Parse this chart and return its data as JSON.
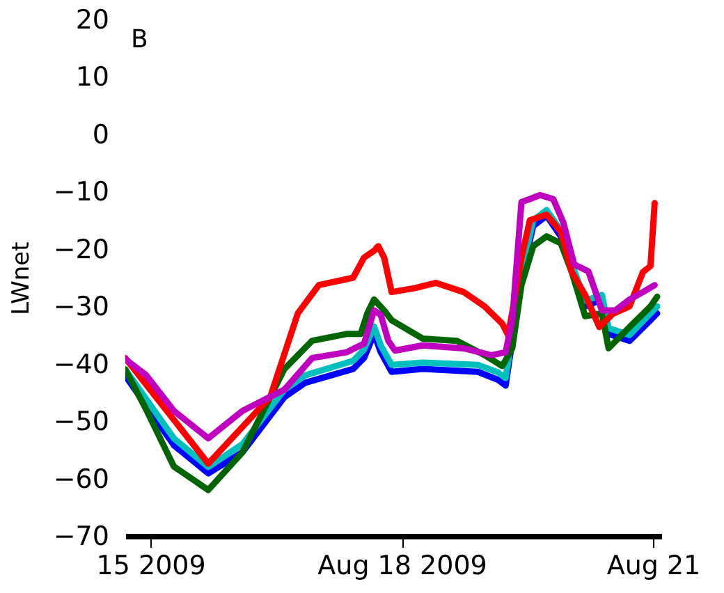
{
  "chart_data": {
    "type": "line",
    "ylabel": "LWnet",
    "annotations": [
      "B"
    ],
    "xlim": [
      "2009-08-14T16:48",
      "2009-08-21T02:24"
    ],
    "xticks": [
      {
        "value": "2009-08-15",
        "label": "15 2009"
      },
      {
        "value": "2009-08-18",
        "label": "Aug 18 2009"
      },
      {
        "value": "2009-08-21",
        "label": "Aug 21"
      }
    ],
    "ylim": [
      -70,
      20
    ],
    "yticks": [
      -70,
      -60,
      -50,
      -40,
      -30,
      -20,
      -10,
      0,
      10,
      20
    ],
    "grid": false,
    "legend": false,
    "marker": "none",
    "line_style": "solid",
    "series": [
      {
        "color": "#0000ff",
        "x": [
          "2009-08-14T16:48",
          "2009-08-15T06:43",
          "2009-08-15T16:34",
          "2009-08-16T02:24",
          "2009-08-16T14:24",
          "2009-08-16T20:24",
          "2009-08-17T10:05",
          "2009-08-17T13:12",
          "2009-08-17T16:05",
          "2009-08-17T18:00",
          "2009-08-17T21:07",
          "2009-08-18T06:00",
          "2009-08-18T21:50",
          "2009-08-19T03:36",
          "2009-08-19T05:46",
          "2009-08-19T07:41",
          "2009-08-19T10:19",
          "2009-08-19T13:41",
          "2009-08-19T17:31",
          "2009-08-19T21:36",
          "2009-08-20T00:43",
          "2009-08-20T04:34",
          "2009-08-20T09:22",
          "2009-08-20T11:17",
          "2009-08-20T17:17",
          "2009-08-20T23:17",
          "2009-08-21T01:12"
        ],
        "values": [
          -42.1,
          -54.2,
          -59.1,
          -55.4,
          -45.8,
          -43.3,
          -40.9,
          -39,
          -34.8,
          -38,
          -41.4,
          -40.9,
          -41.4,
          -42.8,
          -43.8,
          -36,
          -25,
          -16,
          -14.2,
          -17.8,
          -23.5,
          -30,
          -28.8,
          -34.8,
          -36,
          -32.4,
          -31.2
        ]
      },
      {
        "color": "#00bfbf",
        "x": [
          "2009-08-14T16:48",
          "2009-08-15T06:43",
          "2009-08-15T16:34",
          "2009-08-16T02:24",
          "2009-08-16T14:24",
          "2009-08-16T20:24",
          "2009-08-17T10:05",
          "2009-08-17T13:12",
          "2009-08-17T16:05",
          "2009-08-17T18:00",
          "2009-08-17T21:07",
          "2009-08-18T06:00",
          "2009-08-18T21:50",
          "2009-08-19T03:36",
          "2009-08-19T05:46",
          "2009-08-19T07:41",
          "2009-08-19T10:19",
          "2009-08-19T13:41",
          "2009-08-19T17:31",
          "2009-08-19T21:36",
          "2009-08-20T00:43",
          "2009-08-20T04:34",
          "2009-08-20T09:22",
          "2009-08-20T11:17",
          "2009-08-20T17:17",
          "2009-08-20T23:17",
          "2009-08-21T01:12"
        ],
        "values": [
          -41,
          -53,
          -58,
          -54,
          -44.5,
          -42,
          -39.5,
          -37.5,
          -33.5,
          -36.8,
          -40.2,
          -39.8,
          -40.2,
          -41.5,
          -42.5,
          -35,
          -24,
          -15,
          -13.2,
          -16.8,
          -22.5,
          -29,
          -28,
          -33.8,
          -35,
          -31.2,
          -30
        ]
      },
      {
        "color": "#006400",
        "x": [
          "2009-08-14T16:48",
          "2009-08-14T22:48",
          "2009-08-15T06:43",
          "2009-08-15T16:34",
          "2009-08-16T02:24",
          "2009-08-16T14:24",
          "2009-08-16T22:19",
          "2009-08-17T08:10",
          "2009-08-17T12:14",
          "2009-08-17T14:10",
          "2009-08-17T16:05",
          "2009-08-17T18:58",
          "2009-08-17T21:07",
          "2009-08-18T06:00",
          "2009-08-18T15:50",
          "2009-08-18T23:46",
          "2009-08-19T04:48",
          "2009-08-19T07:41",
          "2009-08-19T10:19",
          "2009-08-19T13:41",
          "2009-08-19T17:31",
          "2009-08-19T21:36",
          "2009-08-20T00:43",
          "2009-08-20T04:34",
          "2009-08-20T09:22",
          "2009-08-20T11:17",
          "2009-08-20T17:17",
          "2009-08-20T23:17",
          "2009-08-21T01:12"
        ],
        "values": [
          -41,
          -48,
          -57.9,
          -62,
          -55.4,
          -40.9,
          -36,
          -34.8,
          -34.8,
          -31.2,
          -28.8,
          -30.7,
          -32.4,
          -35.6,
          -36,
          -38.5,
          -40.4,
          -37.3,
          -26.3,
          -19.5,
          -17.8,
          -19,
          -24,
          -31.7,
          -31.2,
          -37.3,
          -33.6,
          -30,
          -28.3
        ]
      },
      {
        "color": "#ff0000",
        "x": [
          "2009-08-14T16:48",
          "2009-08-15T16:34",
          "2009-08-16T10:19",
          "2009-08-16T18:14",
          "2009-08-17T00:14",
          "2009-08-17T10:05",
          "2009-08-17T13:12",
          "2009-08-17T16:05",
          "2009-08-17T17:17",
          "2009-08-17T18:58",
          "2009-08-17T21:07",
          "2009-08-18T03:50",
          "2009-08-18T09:50",
          "2009-08-18T17:46",
          "2009-08-18T23:46",
          "2009-08-19T04:48",
          "2009-08-19T06:29",
          "2009-08-19T07:41",
          "2009-08-19T10:19",
          "2009-08-19T12:43",
          "2009-08-19T17:31",
          "2009-08-19T21:36",
          "2009-08-20T00:43",
          "2009-08-20T04:34",
          "2009-08-20T08:38",
          "2009-08-20T12:29",
          "2009-08-20T17:17",
          "2009-08-20T21:07",
          "2009-08-20T23:17",
          "2009-08-21T00:29"
        ],
        "values": [
          -39,
          -57.4,
          -45.8,
          -31.2,
          -26.3,
          -25,
          -21.5,
          -20.3,
          -19.5,
          -21.5,
          -27.5,
          -26.8,
          -25.9,
          -27.5,
          -30,
          -33,
          -35,
          -31,
          -21.5,
          -15,
          -14,
          -17,
          -24,
          -28,
          -33.6,
          -31.3,
          -30,
          -24,
          -23,
          -12
        ]
      },
      {
        "color": "#bf00bf",
        "x": [
          "2009-08-14T16:48",
          "2009-08-14T22:48",
          "2009-08-15T06:43",
          "2009-08-15T16:34",
          "2009-08-16T02:24",
          "2009-08-16T14:24",
          "2009-08-16T22:19",
          "2009-08-17T08:10",
          "2009-08-17T13:12",
          "2009-08-17T16:05",
          "2009-08-17T18:00",
          "2009-08-17T20:10",
          "2009-08-17T22:05",
          "2009-08-18T06:00",
          "2009-08-18T17:46",
          "2009-08-19T01:41",
          "2009-08-19T05:46",
          "2009-08-19T07:41",
          "2009-08-19T10:19",
          "2009-08-19T12:43",
          "2009-08-19T15:36",
          "2009-08-19T19:26",
          "2009-08-19T22:19",
          "2009-08-20T01:26",
          "2009-08-20T05:31",
          "2009-08-20T09:22",
          "2009-08-20T13:12",
          "2009-08-20T17:17",
          "2009-08-20T21:07",
          "2009-08-21T00:29"
        ],
        "values": [
          -39.2,
          -42,
          -48.2,
          -53,
          -48.2,
          -44.5,
          -39,
          -38,
          -36.5,
          -30.7,
          -31.5,
          -36,
          -37.7,
          -36.8,
          -37.3,
          -38.5,
          -38,
          -32.4,
          -11.8,
          -11.3,
          -10.6,
          -11.3,
          -15.4,
          -22.7,
          -23.9,
          -30.7,
          -30.7,
          -28.8,
          -27.5,
          -26.3
        ]
      }
    ]
  }
}
